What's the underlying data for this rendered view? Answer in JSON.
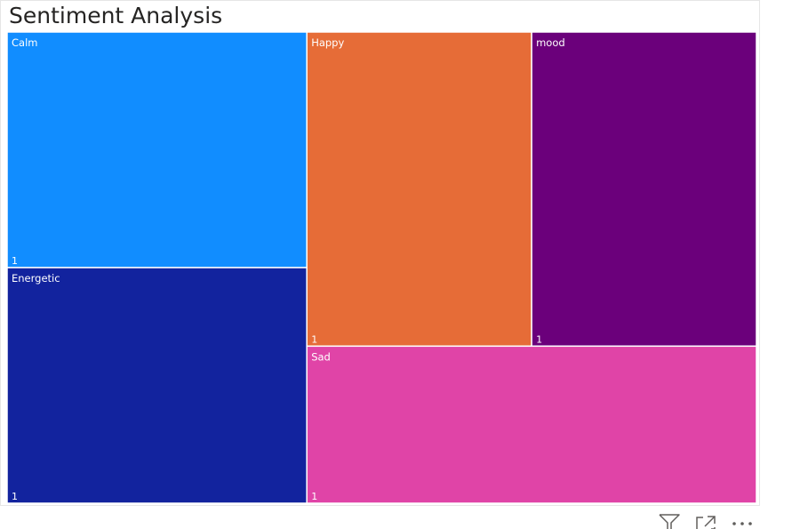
{
  "chart_title": "Sentiment Analysis",
  "chart_data": {
    "type": "treemap",
    "title": "Sentiment Analysis",
    "categories": [
      "Calm",
      "Energetic",
      "Happy",
      "mood",
      "Sad"
    ],
    "values": [
      1,
      1,
      1,
      1,
      1
    ],
    "colors": [
      "#118DFF",
      "#12239E",
      "#E66C37",
      "#6B007B",
      "#E044A7"
    ],
    "label_color": "#ffffff"
  },
  "toolbar": {
    "icons": [
      "filter-icon",
      "focus-mode-icon",
      "more-options-icon"
    ],
    "icon_color": "#605e5c"
  }
}
